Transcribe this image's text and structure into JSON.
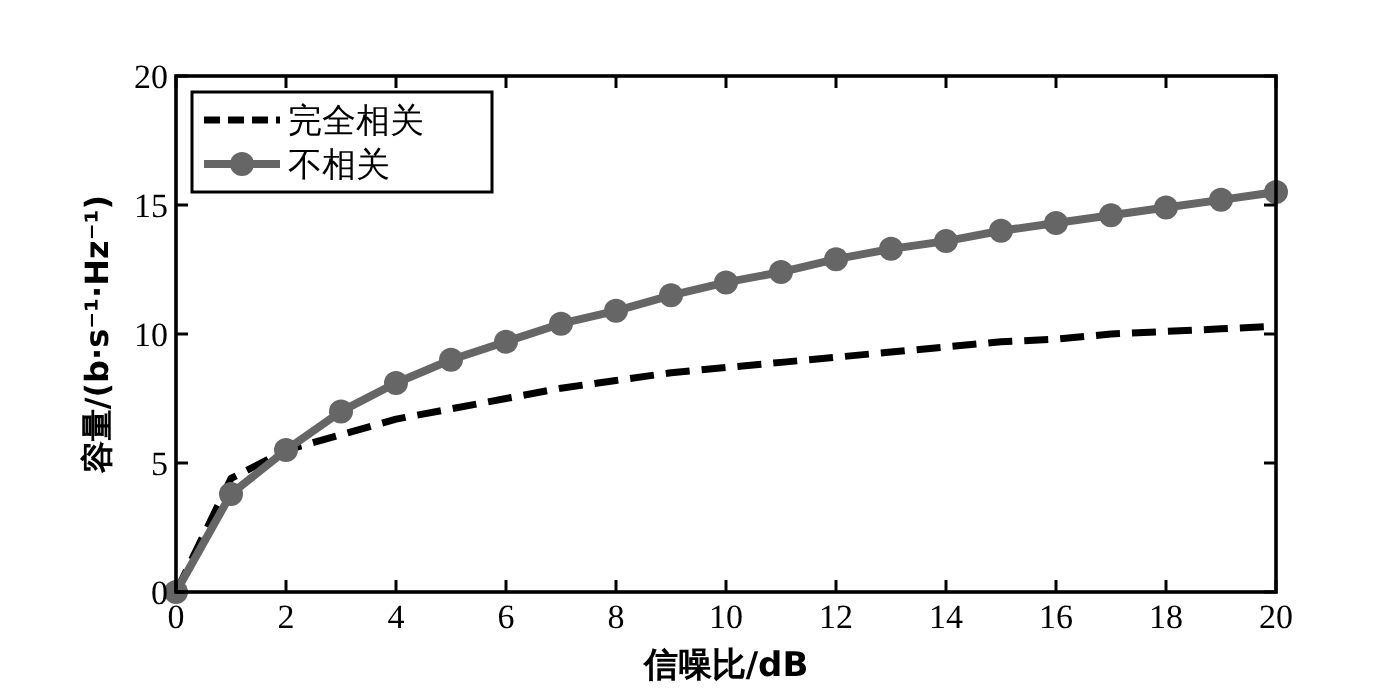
{
  "chart_data": {
    "type": "line",
    "xlabel": "信噪比/dB",
    "ylabel": "容量/(b·s⁻¹·Hz⁻¹)",
    "x": [
      0,
      1,
      2,
      3,
      4,
      5,
      6,
      7,
      8,
      9,
      10,
      11,
      12,
      13,
      14,
      15,
      16,
      17,
      18,
      19,
      20
    ],
    "series": [
      {
        "name": "完全相关",
        "color": "#000000",
        "line_style": "dashed",
        "marker": "none",
        "values": [
          0,
          4.4,
          5.5,
          6.1,
          6.7,
          7.1,
          7.5,
          7.9,
          8.2,
          8.5,
          8.7,
          8.9,
          9.1,
          9.3,
          9.5,
          9.7,
          9.8,
          10.0,
          10.1,
          10.2,
          10.3
        ]
      },
      {
        "name": "不相关",
        "color": "#666666",
        "line_style": "solid",
        "marker": "circle",
        "values": [
          0,
          3.8,
          5.5,
          7.0,
          8.1,
          9.0,
          9.7,
          10.4,
          10.9,
          11.5,
          12.0,
          12.4,
          12.9,
          13.3,
          13.6,
          14.0,
          14.3,
          14.6,
          14.9,
          15.2,
          15.5
        ]
      }
    ],
    "xlim": [
      0,
      20
    ],
    "xticks": [
      0,
      2,
      4,
      6,
      8,
      10,
      12,
      14,
      16,
      18,
      20
    ],
    "ylim": [
      0,
      20
    ],
    "yticks": [
      0,
      5,
      10,
      15,
      20
    ],
    "grid": false,
    "legend": "top left"
  }
}
